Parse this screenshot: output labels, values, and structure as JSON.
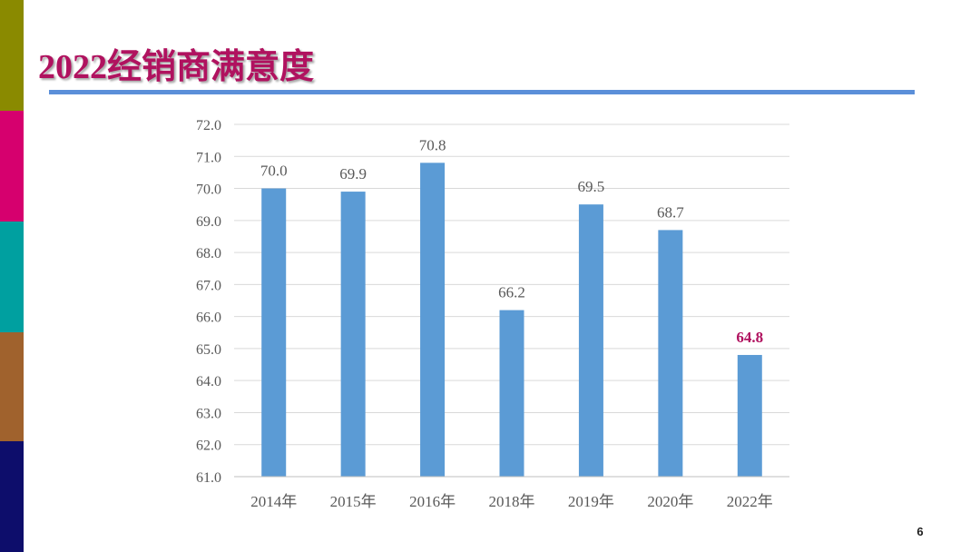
{
  "slide": {
    "title": "2022经销商满意度",
    "page_number": "6"
  },
  "colors": {
    "title": "#b0125f",
    "title_rule": "#5b8fd9",
    "bar": "#5b9bd5",
    "label": "#595959",
    "highlight_label": "#b0125f",
    "gridline": "#d9d9d9",
    "sidebar": [
      "#8a8a00",
      "#d6006e",
      "#00a0a0",
      "#a0622d",
      "#0d0d6b"
    ]
  },
  "chart_data": {
    "type": "bar",
    "categories": [
      "2014年",
      "2015年",
      "2016年",
      "2018年",
      "2019年",
      "2020年",
      "2022年"
    ],
    "values": [
      70.0,
      69.9,
      70.8,
      66.2,
      69.5,
      68.7,
      64.8
    ],
    "data_labels": [
      "70.0",
      "69.9",
      "70.8",
      "66.2",
      "69.5",
      "68.7",
      "64.8"
    ],
    "highlight_index": 6,
    "ylim": [
      61.0,
      72.0
    ],
    "y_ticks": [
      "61.0",
      "62.0",
      "63.0",
      "64.0",
      "65.0",
      "66.0",
      "67.0",
      "68.0",
      "69.0",
      "70.0",
      "71.0",
      "72.0"
    ],
    "grid": true,
    "title": "",
    "xlabel": "",
    "ylabel": ""
  }
}
